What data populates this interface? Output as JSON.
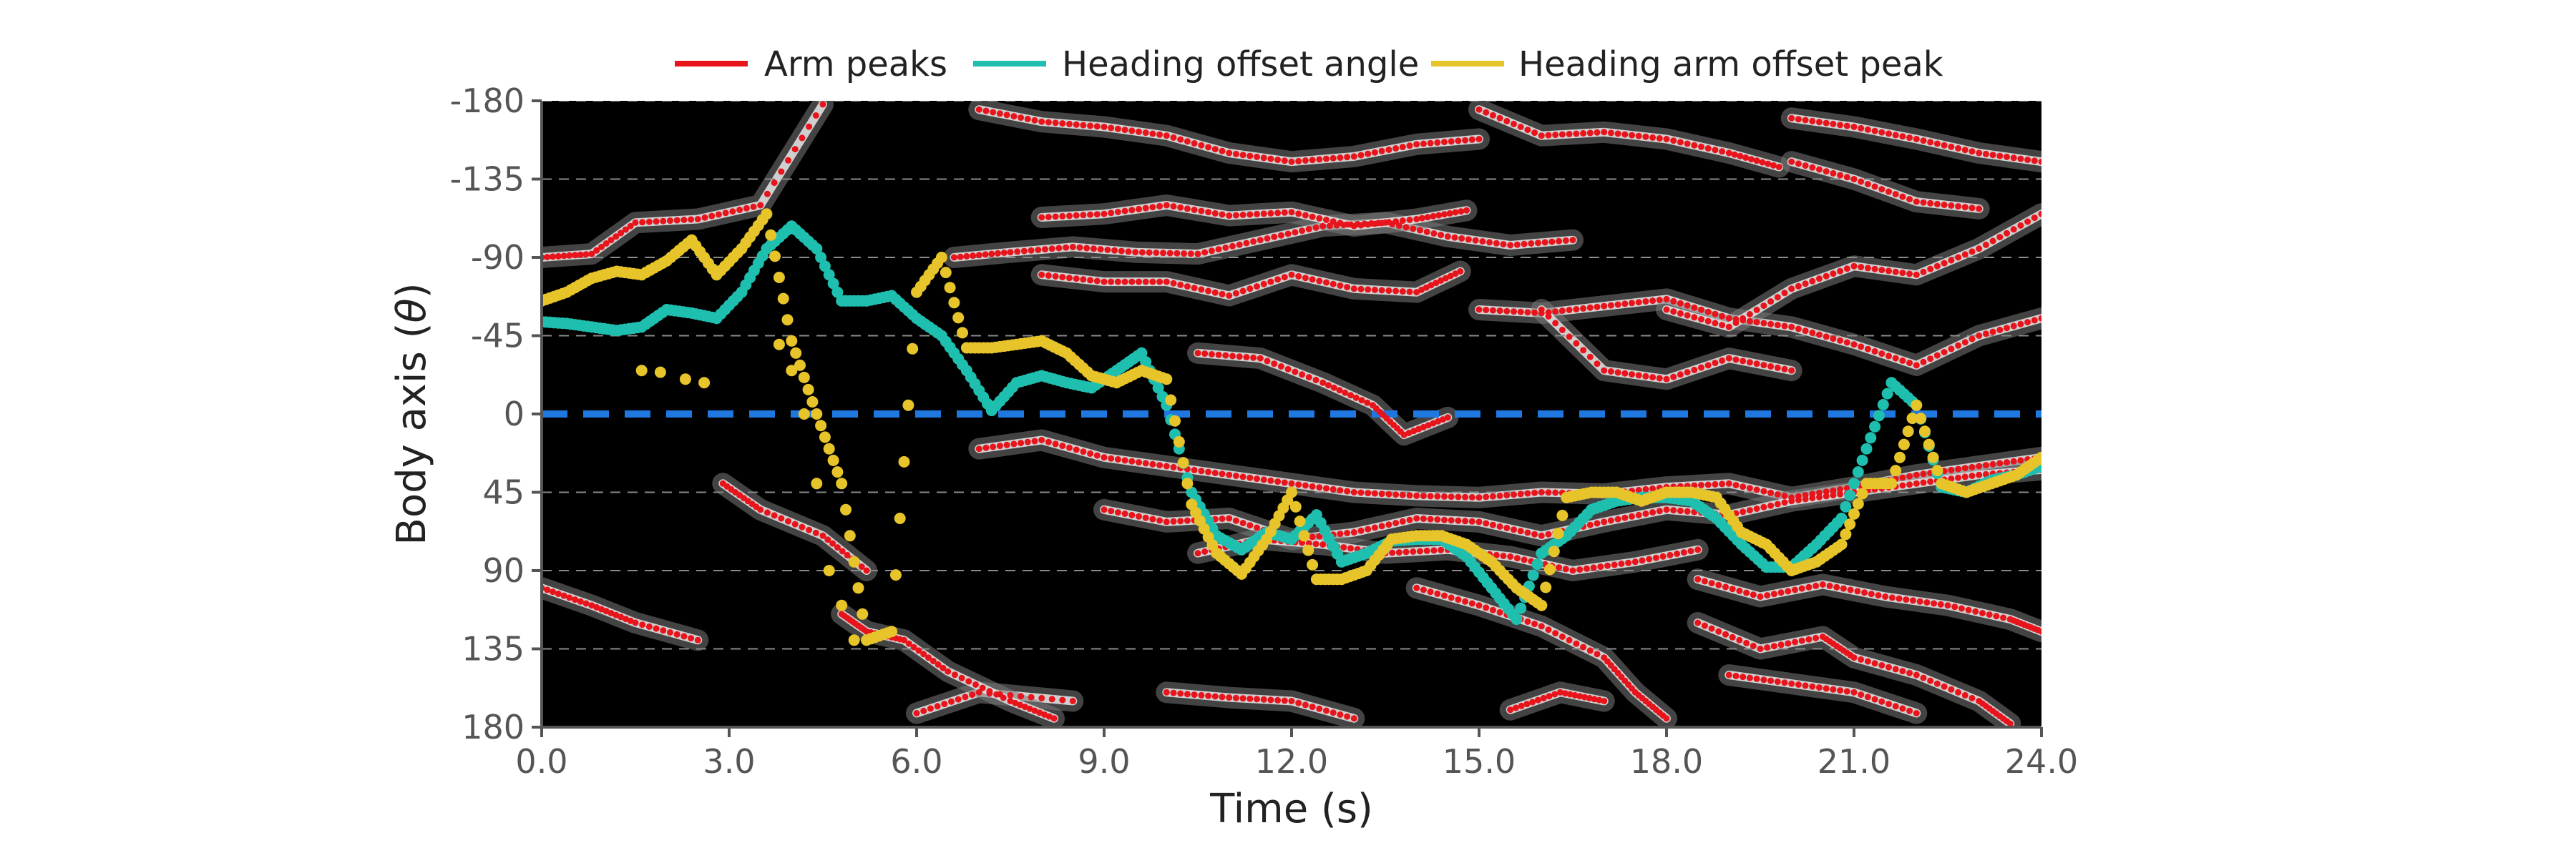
{
  "chart_data": {
    "type": "scatter",
    "xlabel": "Time (s)",
    "ylabel": "Body axis (θ)",
    "xlim": [
      0,
      24
    ],
    "ylim": [
      -180,
      180
    ],
    "y_inverted": true,
    "x_ticks": [
      "0.0",
      "3.0",
      "6.0",
      "9.0",
      "12.0",
      "15.0",
      "18.0",
      "21.0",
      "24.0"
    ],
    "x_tick_values": [
      0,
      3,
      6,
      9,
      12,
      15,
      18,
      21,
      24
    ],
    "y_ticks": [
      "-180",
      "-135",
      "-90",
      "-45",
      "0",
      "45",
      "90",
      "135",
      "180"
    ],
    "y_tick_values": [
      -180,
      -135,
      -90,
      -45,
      0,
      45,
      90,
      135,
      180
    ],
    "grid": "horizontal dashed",
    "background": "heatmap (black with white/gray ridges)",
    "legend_position": "top",
    "reference_line": {
      "y": 0,
      "style": "dashed",
      "color": "#1f77e0"
    },
    "colors": {
      "arm_peaks": "#e8141c",
      "heading_offset_angle": "#1fbfb0",
      "heading_arm_offset_peak": "#e6c42a",
      "background": "#000000",
      "zero_line": "#1f77e0"
    },
    "series": [
      {
        "name": "Arm peaks",
        "color": "#e8141c",
        "tracks": [
          [
            [
              6.6,
              -90
            ],
            [
              7.5,
              -93
            ],
            [
              8.5,
              -96
            ],
            [
              9.5,
              -93
            ],
            [
              10.5,
              -92
            ],
            [
              11.5,
              -100
            ],
            [
              12.5,
              -108
            ],
            [
              13.5,
              -110
            ],
            [
              14.5,
              -102
            ],
            [
              15.5,
              -97
            ],
            [
              16.5,
              -100
            ]
          ],
          [
            [
              8,
              -113
            ],
            [
              9,
              -115
            ],
            [
              10,
              -120
            ],
            [
              11,
              -114
            ],
            [
              12,
              -116
            ],
            [
              13,
              -108
            ],
            [
              14,
              -112
            ],
            [
              14.8,
              -117
            ]
          ],
          [
            [
              8,
              -80
            ],
            [
              9,
              -76
            ],
            [
              10,
              -76
            ],
            [
              11,
              -68
            ],
            [
              12,
              -80
            ],
            [
              13,
              -72
            ],
            [
              14,
              -70
            ],
            [
              14.7,
              -82
            ]
          ],
          [
            [
              7,
              -175
            ],
            [
              8,
              -168
            ],
            [
              9,
              -165
            ],
            [
              10,
              -160
            ],
            [
              11,
              -150
            ],
            [
              12,
              -145
            ],
            [
              13,
              -148
            ],
            [
              14,
              -155
            ],
            [
              15,
              -158
            ]
          ],
          [
            [
              15,
              -175
            ],
            [
              16,
              -160
            ],
            [
              17,
              -162
            ],
            [
              18,
              -158
            ],
            [
              19,
              -150
            ],
            [
              19.8,
              -142
            ]
          ],
          [
            [
              10.5,
              -35
            ],
            [
              11.5,
              -32
            ],
            [
              12.5,
              -18
            ],
            [
              13.3,
              -5
            ],
            [
              13.8,
              12
            ],
            [
              14.5,
              2
            ]
          ],
          [
            [
              15,
              -60
            ],
            [
              16,
              -58
            ],
            [
              17,
              -62
            ],
            [
              18,
              -66
            ],
            [
              19,
              -55
            ],
            [
              20,
              -50
            ],
            [
              21,
              -40
            ],
            [
              22,
              -28
            ],
            [
              23,
              -45
            ],
            [
              24,
              -55
            ]
          ],
          [
            [
              16,
              -60
            ],
            [
              17,
              -25
            ],
            [
              18,
              -20
            ],
            [
              19,
              -32
            ],
            [
              20,
              -25
            ]
          ],
          [
            [
              18,
              -60
            ],
            [
              19,
              -50
            ],
            [
              20,
              -72
            ],
            [
              21,
              -85
            ],
            [
              22,
              -80
            ],
            [
              23,
              -95
            ],
            [
              24,
              -115
            ]
          ],
          [
            [
              20,
              -170
            ],
            [
              21,
              -165
            ],
            [
              22,
              -158
            ],
            [
              23,
              -150
            ],
            [
              24,
              -145
            ]
          ],
          [
            [
              20,
              -145
            ],
            [
              21,
              -135
            ],
            [
              22,
              -122
            ],
            [
              23,
              -118
            ]
          ],
          [
            [
              7,
              20
            ],
            [
              8,
              15
            ],
            [
              9,
              25
            ],
            [
              10,
              30
            ],
            [
              11,
              35
            ],
            [
              12,
              40
            ],
            [
              13,
              45
            ],
            [
              14,
              47
            ],
            [
              15,
              48
            ],
            [
              16,
              45
            ],
            [
              17,
              46
            ],
            [
              18,
              42
            ],
            [
              19,
              40
            ],
            [
              20,
              48
            ],
            [
              21,
              42
            ],
            [
              22,
              35
            ],
            [
              23,
              30
            ],
            [
              24,
              25
            ]
          ],
          [
            [
              9,
              55
            ],
            [
              10,
              62
            ],
            [
              11,
              60
            ],
            [
              12,
              72
            ],
            [
              13,
              68
            ],
            [
              14,
              60
            ],
            [
              15,
              62
            ],
            [
              16,
              70
            ],
            [
              17,
              62
            ],
            [
              18,
              55
            ],
            [
              19,
              58
            ],
            [
              20,
              50
            ],
            [
              21,
              45
            ],
            [
              22,
              40
            ],
            [
              23,
              35
            ],
            [
              24,
              32
            ]
          ],
          [
            [
              10.5,
              80
            ],
            [
              11.5,
              72
            ],
            [
              12.5,
              75
            ],
            [
              13.5,
              80
            ],
            [
              14.5,
              78
            ],
            [
              15.5,
              82
            ],
            [
              16.5,
              90
            ],
            [
              17.5,
              85
            ],
            [
              18.5,
              78
            ]
          ],
          [
            [
              14,
              100
            ],
            [
              15,
              110
            ],
            [
              16,
              122
            ],
            [
              17,
              140
            ],
            [
              17.5,
              160
            ],
            [
              18,
              175
            ]
          ],
          [
            [
              18.5,
              95
            ],
            [
              19.5,
              105
            ],
            [
              20.5,
              98
            ],
            [
              21.5,
              105
            ],
            [
              22.5,
              110
            ],
            [
              23.5,
              118
            ],
            [
              24,
              125
            ]
          ],
          [
            [
              18.5,
              120
            ],
            [
              19.5,
              135
            ],
            [
              20.5,
              128
            ],
            [
              21,
              140
            ],
            [
              22,
              150
            ],
            [
              23,
              165
            ],
            [
              23.5,
              178
            ]
          ],
          [
            [
              19,
              150
            ],
            [
              20,
              155
            ],
            [
              21,
              160
            ],
            [
              22,
              172
            ]
          ],
          [
            [
              10,
              160
            ],
            [
              11,
              163
            ],
            [
              12,
              165
            ],
            [
              13,
              175
            ]
          ],
          [
            [
              15.5,
              170
            ],
            [
              16.3,
              160
            ],
            [
              17,
              165
            ]
          ],
          [
            [
              8.5,
              165
            ],
            [
              7,
              160
            ],
            [
              6,
              172
            ]
          ],
          [
            [
              2.9,
              40
            ],
            [
              3.5,
              55
            ],
            [
              4.5,
              70
            ],
            [
              5.2,
              90
            ]
          ],
          [
            [
              4.8,
              115
            ],
            [
              5.2,
              125
            ],
            [
              5.8,
              130
            ],
            [
              6.5,
              148
            ],
            [
              7.5,
              165
            ],
            [
              8.2,
              175
            ]
          ],
          [
            [
              0,
              100
            ],
            [
              0.8,
              110
            ],
            [
              1.5,
              120
            ],
            [
              2.5,
              130
            ]
          ],
          [
            [
              0,
              -90
            ],
            [
              0.8,
              -92
            ],
            [
              1.5,
              -110
            ],
            [
              2.5,
              -112
            ],
            [
              3.5,
              -120
            ],
            [
              4.5,
              -178
            ]
          ]
        ]
      },
      {
        "name": "Heading offset angle",
        "color": "#1fbfb0",
        "x": [
          0.0,
          0.4,
          0.8,
          1.2,
          1.6,
          2.0,
          2.4,
          2.8,
          3.2,
          3.6,
          4.0,
          4.4,
          4.8,
          5.2,
          5.6,
          6.0,
          6.4,
          6.8,
          7.2,
          7.6,
          8.0,
          8.4,
          8.8,
          9.2,
          9.6,
          10.0,
          10.4,
          10.8,
          11.2,
          11.6,
          12.0,
          12.4,
          12.8,
          13.2,
          13.6,
          14.0,
          14.4,
          14.8,
          15.2,
          15.6,
          16.0,
          16.4,
          16.8,
          17.2,
          17.6,
          18.0,
          18.4,
          18.8,
          19.2,
          19.6,
          20.0,
          20.4,
          20.8,
          21.2,
          21.6,
          22.0,
          22.4,
          22.8,
          23.2,
          23.6,
          24.0
        ],
        "values": [
          -53,
          -52,
          -50,
          -48,
          -50,
          -60,
          -58,
          -55,
          -70,
          -95,
          -108,
          -95,
          -65,
          -65,
          -68,
          -55,
          -45,
          -25,
          -2,
          -18,
          -22,
          -18,
          -15,
          -25,
          -35,
          -5,
          45,
          70,
          78,
          68,
          72,
          58,
          85,
          80,
          73,
          72,
          72,
          82,
          100,
          118,
          80,
          70,
          55,
          50,
          48,
          48,
          50,
          60,
          75,
          88,
          88,
          75,
          60,
          20,
          -18,
          -5,
          42,
          45,
          38,
          35,
          30
        ]
      },
      {
        "name": "Heading arm offset peak",
        "color": "#e6c42a",
        "x": [
          0.0,
          0.4,
          0.8,
          1.2,
          1.6,
          2.0,
          2.4,
          2.8,
          3.2,
          3.6,
          4.0,
          4.4,
          4.8,
          5.2,
          5.6,
          6.0,
          6.4,
          6.8,
          7.2,
          7.6,
          8.0,
          8.4,
          8.8,
          9.2,
          9.6,
          10.0,
          10.4,
          10.8,
          11.2,
          11.6,
          12.0,
          12.4,
          12.8,
          13.2,
          13.6,
          14.0,
          14.4,
          14.8,
          15.2,
          15.6,
          16.0,
          16.4,
          16.8,
          17.2,
          17.6,
          18.0,
          18.4,
          18.8,
          19.2,
          19.6,
          20.0,
          20.4,
          20.8,
          21.2,
          21.6,
          22.0,
          22.4,
          22.8,
          23.2,
          23.6,
          24.0
        ],
        "values": [
          -65,
          -70,
          -78,
          -82,
          -80,
          -88,
          -100,
          -80,
          -95,
          -115,
          -42,
          0,
          40,
          130,
          125,
          -70,
          -90,
          -38,
          -38,
          -40,
          -42,
          -35,
          -22,
          -18,
          -25,
          -20,
          52,
          80,
          92,
          72,
          45,
          95,
          95,
          90,
          72,
          70,
          70,
          75,
          85,
          100,
          110,
          48,
          45,
          45,
          50,
          45,
          45,
          48,
          68,
          75,
          90,
          85,
          75,
          40,
          40,
          -5,
          40,
          45,
          40,
          35,
          25
        ]
      },
      {
        "name": "Heading arm offset peak (scatter branch)",
        "color": "#e6c42a",
        "x": [
          1.6,
          1.9,
          2.3,
          2.6,
          3.8,
          4.0,
          4.2,
          4.4,
          4.6,
          4.8,
          5.0
        ],
        "values": [
          -25,
          -24,
          -20,
          -18,
          -40,
          -25,
          0,
          40,
          90,
          110,
          130
        ]
      }
    ]
  },
  "legend": {
    "items": [
      {
        "label": "Arm peaks",
        "color": "#e8141c"
      },
      {
        "label": "Heading offset angle",
        "color": "#1fbfb0"
      },
      {
        "label": "Heading arm offset peak",
        "color": "#e6c42a"
      }
    ]
  },
  "axes": {
    "xlabel": "Time (s)",
    "ylabel_prefix": "Body axis (",
    "ylabel_symbol": "θ",
    "ylabel_suffix": ")"
  }
}
